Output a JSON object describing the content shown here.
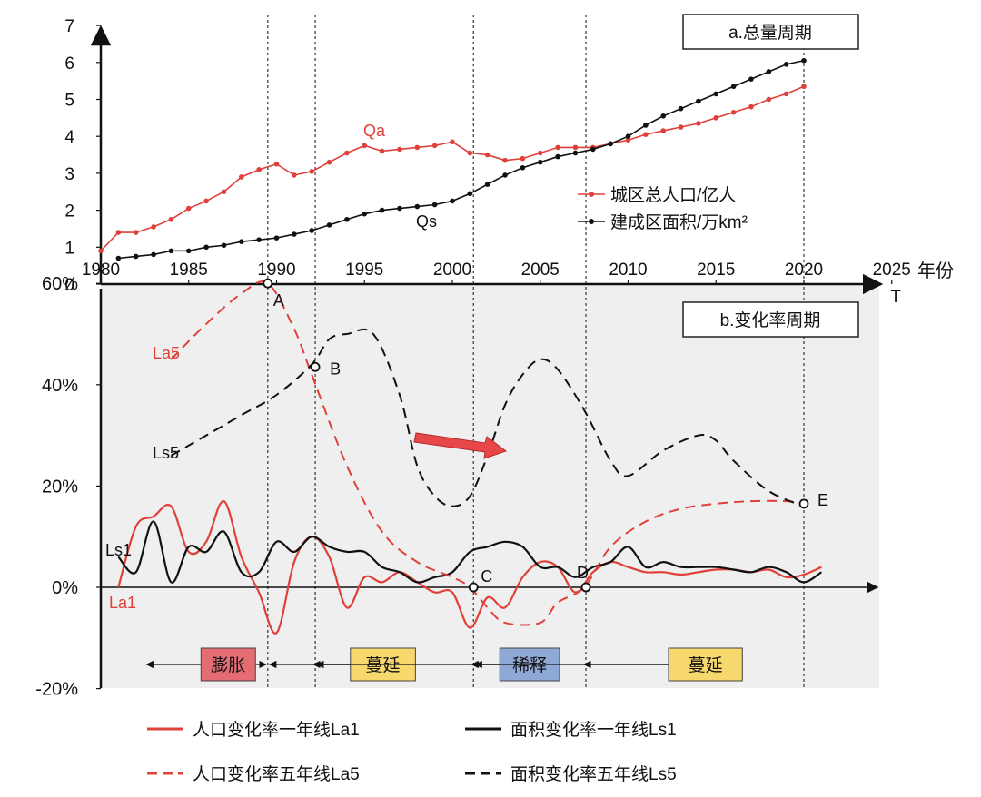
{
  "chart_data": [
    {
      "type": "line",
      "title": "a.总量周期",
      "xlabel": "年份",
      "xlim": [
        1980,
        2025
      ],
      "ylim": [
        0,
        7
      ],
      "x_ticks": [
        1980,
        1985,
        1990,
        1995,
        2000,
        2005,
        2010,
        2015,
        2020,
        2025
      ],
      "y_ticks": [
        0,
        1,
        2,
        3,
        4,
        5,
        6,
        7
      ],
      "grid": false,
      "legend_position": "middle-right",
      "series": [
        {
          "name": "城区总人口/亿人",
          "label": "Qa",
          "color": "#e0403a",
          "x": [
            1980,
            1981,
            1982,
            1983,
            1984,
            1985,
            1986,
            1987,
            1988,
            1989,
            1990,
            1991,
            1992,
            1993,
            1994,
            1995,
            1996,
            1997,
            1998,
            1999,
            2000,
            2001,
            2002,
            2003,
            2004,
            2005,
            2006,
            2007,
            2008,
            2009,
            2010,
            2011,
            2012,
            2013,
            2014,
            2015,
            2016,
            2017,
            2018,
            2019,
            2020
          ],
          "values": [
            0.9,
            1.4,
            1.4,
            1.55,
            1.75,
            2.05,
            2.25,
            2.5,
            2.9,
            3.1,
            3.25,
            2.95,
            3.05,
            3.3,
            3.55,
            3.75,
            3.6,
            3.65,
            3.7,
            3.75,
            3.85,
            3.55,
            3.5,
            3.35,
            3.4,
            3.55,
            3.7,
            3.7,
            3.7,
            3.8,
            3.9,
            4.05,
            4.15,
            4.25,
            4.35,
            4.5,
            4.65,
            4.8,
            5.0,
            5.15,
            5.35
          ]
        },
        {
          "name": "建成区面积/万km²",
          "label": "Qs",
          "color": "#111111",
          "x": [
            1981,
            1982,
            1983,
            1984,
            1985,
            1986,
            1987,
            1988,
            1989,
            1990,
            1991,
            1992,
            1993,
            1994,
            1995,
            1996,
            1997,
            1998,
            1999,
            2000,
            2001,
            2002,
            2003,
            2004,
            2005,
            2006,
            2007,
            2008,
            2009,
            2010,
            2011,
            2012,
            2013,
            2014,
            2015,
            2016,
            2017,
            2018,
            2019,
            2020
          ],
          "values": [
            0.7,
            0.75,
            0.8,
            0.9,
            0.9,
            1.0,
            1.05,
            1.15,
            1.2,
            1.25,
            1.35,
            1.45,
            1.6,
            1.75,
            1.9,
            2.0,
            2.05,
            2.1,
            2.15,
            2.25,
            2.45,
            2.7,
            2.95,
            3.15,
            3.3,
            3.45,
            3.55,
            3.65,
            3.8,
            4.0,
            4.3,
            4.55,
            4.75,
            4.95,
            5.15,
            5.35,
            5.55,
            5.75,
            5.95,
            6.05
          ]
        }
      ]
    },
    {
      "type": "line",
      "title": "b.变化率周期",
      "xlabel": "T",
      "xlim": [
        1980,
        2025
      ],
      "ylim": [
        -20,
        60
      ],
      "y_ticks": [
        "-20%",
        "0%",
        "20%",
        "40%",
        "60%"
      ],
      "grid": false,
      "legend_position": "bottom",
      "series": [
        {
          "name": "人口变化率一年线La1",
          "label": "La1",
          "color": "#e0403a",
          "dash": "solid",
          "x": [
            1981,
            1982,
            1983,
            1984,
            1985,
            1986,
            1987,
            1988,
            1989,
            1990,
            1991,
            1992,
            1993,
            1994,
            1995,
            1996,
            1997,
            1998,
            1999,
            2000,
            2001,
            2002,
            2003,
            2004,
            2005,
            2006,
            2007,
            2008,
            2009,
            2010,
            2011,
            2012,
            2013,
            2014,
            2015,
            2016,
            2017,
            2018,
            2019,
            2020,
            2021
          ],
          "values": [
            0,
            12,
            14,
            16,
            7,
            9,
            17,
            6,
            -1,
            -9,
            5,
            10,
            6,
            -4,
            2,
            1,
            3,
            1,
            -1,
            -1,
            -8,
            -2,
            -4,
            2,
            5,
            4,
            -1,
            3,
            5,
            4,
            3,
            3,
            2.5,
            3,
            3.5,
            3.5,
            3,
            3.5,
            2,
            2.5,
            4
          ]
        },
        {
          "name": "面积变化率一年线Ls1",
          "label": "Ls1",
          "color": "#111111",
          "dash": "solid",
          "x": [
            1981,
            1982,
            1983,
            1984,
            1985,
            1986,
            1987,
            1988,
            1989,
            1990,
            1991,
            1992,
            1993,
            1994,
            1995,
            1996,
            1997,
            1998,
            1999,
            2000,
            2001,
            2002,
            2003,
            2004,
            2005,
            2006,
            2007,
            2008,
            2009,
            2010,
            2011,
            2012,
            2013,
            2014,
            2015,
            2016,
            2017,
            2018,
            2019,
            2020,
            2021
          ],
          "values": [
            6,
            3,
            13,
            1,
            8,
            7,
            11,
            3,
            3,
            9,
            7,
            10,
            8,
            7,
            7,
            4,
            3,
            1,
            2,
            3,
            7,
            8,
            9,
            8,
            4,
            4,
            2,
            4,
            5,
            8,
            4,
            5,
            4,
            4,
            4,
            3.5,
            3,
            4,
            3,
            1,
            3
          ]
        },
        {
          "name": "人口变化率五年线La5",
          "label": "La5",
          "color": "#e0403a",
          "dash": "dashed",
          "x": [
            1984,
            1986,
            1988,
            1989.5,
            1991,
            1992,
            1994,
            1996,
            1998,
            2000,
            2001,
            2002,
            2003,
            2005,
            2006,
            2007.5,
            2009,
            2011,
            2013,
            2015,
            2017,
            2019,
            2020
          ],
          "values": [
            45,
            52,
            58,
            60,
            51,
            42,
            24,
            11,
            5,
            2,
            0,
            -4,
            -7,
            -7,
            -3,
            0,
            8,
            13,
            15.5,
            16.5,
            17,
            17,
            16.5
          ]
        },
        {
          "name": "面积变化率五年线Ls5",
          "label": "Ls5",
          "color": "#111111",
          "dash": "dashed",
          "x": [
            1984,
            1986,
            1988,
            1990,
            1992,
            1993,
            1994,
            1995.5,
            1997,
            1998,
            1999,
            2000,
            2001,
            2002,
            2003,
            2004,
            2005,
            2006,
            2007.5,
            2009,
            2010,
            2012,
            2014,
            2015,
            2016,
            2018,
            2020
          ],
          "values": [
            26,
            30,
            34,
            38,
            44,
            49,
            50,
            50,
            38,
            24,
            18,
            16,
            18,
            26,
            36,
            42,
            45,
            43,
            35,
            25,
            22,
            27,
            30,
            29,
            25,
            19,
            16
          ]
        }
      ],
      "annotations": [
        "A",
        "B",
        "C",
        "D",
        "E"
      ],
      "phases": [
        "膨胀",
        "蔓延",
        "稀释",
        "蔓延"
      ]
    }
  ]
}
